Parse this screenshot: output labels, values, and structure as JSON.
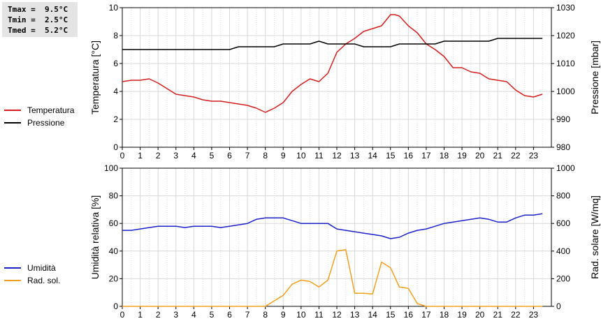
{
  "stats": {
    "tmax_label": "Tmax =",
    "tmax_value": "9.5°C",
    "tmin_label": "Tmin =",
    "tmin_value": "2.5°C",
    "tmed_label": "Tmed =",
    "tmed_value": "5.2°C"
  },
  "colors": {
    "temperature": "#d21e1e",
    "pressure": "#000000",
    "humidity": "#1a22c8",
    "radiation": "#f0a020",
    "grid": "#d8d8d8",
    "stats_bg": "#e4e4e4"
  },
  "chart_data": [
    {
      "type": "line",
      "xlim": [
        0,
        24
      ],
      "x_ticks": [
        "0",
        "1",
        "2",
        "3",
        "4",
        "5",
        "6",
        "7",
        "8",
        "9",
        "10",
        "11",
        "12",
        "13",
        "14",
        "15",
        "16",
        "17",
        "18",
        "19",
        "20",
        "21",
        "22",
        "23"
      ],
      "ylabel": "Temperatura [°C]",
      "ylim": [
        0,
        10
      ],
      "y_ticks": [
        "0",
        "2",
        "4",
        "6",
        "8",
        "10"
      ],
      "y2label": "Pressione [mbar]",
      "y2lim": [
        980,
        1030
      ],
      "y2_ticks": [
        "980",
        "990",
        "1000",
        "1010",
        "1020",
        "1030"
      ],
      "grid": true,
      "legend_placement": "left",
      "series": [
        {
          "name": "Temperatura",
          "axis": "left",
          "x": [
            0,
            0.5,
            1,
            1.5,
            2,
            2.5,
            3,
            3.5,
            4,
            4.5,
            5,
            5.5,
            6,
            6.5,
            7,
            7.5,
            8,
            8.5,
            9,
            9.5,
            10,
            10.5,
            11,
            11.5,
            12,
            12.5,
            13,
            13.5,
            14,
            14.5,
            15,
            15.25,
            15.5,
            16,
            16.5,
            17,
            17.5,
            18,
            18.5,
            19,
            19.5,
            20,
            20.5,
            21,
            21.5,
            22,
            22.5,
            23,
            23.5
          ],
          "values": [
            4.7,
            4.8,
            4.8,
            4.9,
            4.6,
            4.2,
            3.8,
            3.7,
            3.6,
            3.4,
            3.3,
            3.3,
            3.2,
            3.1,
            3.0,
            2.8,
            2.5,
            2.8,
            3.2,
            4.0,
            4.5,
            4.9,
            4.7,
            5.3,
            6.8,
            7.4,
            7.8,
            8.3,
            8.5,
            8.7,
            9.5,
            9.5,
            9.4,
            8.7,
            8.2,
            7.4,
            7.0,
            6.5,
            5.7,
            5.7,
            5.4,
            5.3,
            4.9,
            4.8,
            4.7,
            4.1,
            3.7,
            3.6,
            3.8
          ]
        },
        {
          "name": "Pressione",
          "axis": "right",
          "x": [
            0,
            6,
            6.5,
            8.5,
            9,
            10.5,
            11,
            11.5,
            12.5,
            13,
            13.5,
            15,
            15.5,
            17.5,
            18,
            20.5,
            21,
            23.5
          ],
          "values": [
            1015,
            1015,
            1016,
            1016,
            1017,
            1017,
            1018,
            1017,
            1017,
            1017,
            1016,
            1016,
            1017,
            1017,
            1018,
            1018,
            1019,
            1019
          ]
        }
      ]
    },
    {
      "type": "line",
      "xlim": [
        0,
        24
      ],
      "x_ticks": [
        "0",
        "1",
        "2",
        "3",
        "4",
        "5",
        "6",
        "7",
        "8",
        "9",
        "10",
        "11",
        "12",
        "13",
        "14",
        "15",
        "16",
        "17",
        "18",
        "19",
        "20",
        "21",
        "22",
        "23"
      ],
      "ylabel": "Umidità relativa [%]",
      "ylim": [
        0,
        100
      ],
      "y_ticks": [
        "0",
        "20",
        "40",
        "60",
        "80",
        "100"
      ],
      "y2label": "Rad. solare [W/mq]",
      "y2lim": [
        0,
        1000
      ],
      "y2_ticks": [
        "0",
        "200",
        "400",
        "600",
        "800",
        "1000"
      ],
      "grid": true,
      "legend_placement": "left",
      "series": [
        {
          "name": "Umidità",
          "axis": "left",
          "x": [
            0,
            0.5,
            1,
            1.5,
            2,
            2.5,
            3,
            3.5,
            4,
            4.5,
            5,
            5.5,
            6,
            6.5,
            7,
            7.5,
            8,
            8.5,
            9,
            9.5,
            10,
            10.5,
            11,
            11.5,
            12,
            12.5,
            13,
            13.5,
            14,
            14.5,
            15,
            15.5,
            16,
            16.5,
            17,
            17.5,
            18,
            18.5,
            19,
            19.5,
            20,
            20.5,
            21,
            21.5,
            22,
            22.5,
            23,
            23.5
          ],
          "values": [
            55,
            55,
            56,
            57,
            58,
            58,
            58,
            57,
            58,
            58,
            58,
            57,
            58,
            59,
            60,
            63,
            64,
            64,
            64,
            62,
            60,
            60,
            60,
            60,
            56,
            55,
            54,
            53,
            52,
            51,
            49,
            50,
            53,
            55,
            56,
            58,
            60,
            61,
            62,
            63,
            64,
            63,
            61,
            61,
            64,
            66,
            66,
            67
          ]
        },
        {
          "name": "Rad. sol.",
          "axis": "right",
          "x": [
            0,
            1,
            2,
            3,
            4,
            5,
            6,
            7,
            8,
            8.5,
            9,
            9.5,
            10,
            10.5,
            11,
            11.5,
            12,
            12.5,
            13,
            13.5,
            14,
            14.5,
            15,
            15.5,
            16,
            16.5,
            17,
            18,
            19,
            20,
            21,
            22,
            23,
            23.5
          ],
          "values": [
            0,
            0,
            0,
            0,
            0,
            0,
            0,
            0,
            0,
            40,
            80,
            160,
            190,
            180,
            140,
            190,
            400,
            410,
            95,
            95,
            90,
            320,
            280,
            140,
            130,
            20,
            0,
            0,
            0,
            0,
            0,
            0,
            0,
            0
          ]
        }
      ]
    }
  ]
}
